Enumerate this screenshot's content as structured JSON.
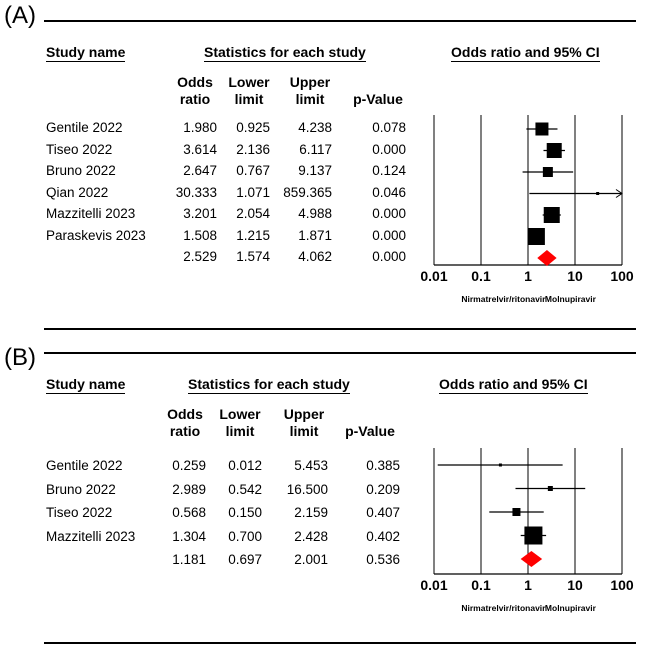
{
  "chart_data": [
    {
      "type": "forest",
      "panel_label": "(A)",
      "headers": {
        "study": "Study name",
        "stats": "Statistics for each study",
        "plot": "Odds ratio and 95% CI",
        "col_or_1": "Odds",
        "col_or_2": "ratio",
        "col_lo_1": "Lower",
        "col_lo_2": "limit",
        "col_hi_1": "Upper",
        "col_hi_2": "limit",
        "col_p": "p-Value"
      },
      "rows": [
        {
          "study": "Gentile 2022",
          "or": "1.980",
          "lower": "0.925",
          "upper": "4.238",
          "p": "0.078",
          "or_v": 1.98,
          "lo_v": 0.925,
          "hi_v": 4.238,
          "size": 13
        },
        {
          "study": "Tiseo 2022",
          "or": "3.614",
          "lower": "2.136",
          "upper": "6.117",
          "p": "0.000",
          "or_v": 3.614,
          "lo_v": 2.136,
          "hi_v": 6.117,
          "size": 15
        },
        {
          "study": "Bruno 2022",
          "or": "2.647",
          "lower": "0.767",
          "upper": "9.137",
          "p": "0.124",
          "or_v": 2.647,
          "lo_v": 0.767,
          "hi_v": 9.137,
          "size": 10
        },
        {
          "study": "Qian 2022",
          "or": "30.333",
          "lower": "1.071",
          "upper": "859.365",
          "p": "0.046",
          "or_v": 30.333,
          "lo_v": 1.071,
          "hi_v": 859.365,
          "size": 3,
          "arrow_right": true
        },
        {
          "study": "Mazzitelli 2023",
          "or": "3.201",
          "lower": "2.054",
          "upper": "4.988",
          "p": "0.000",
          "or_v": 3.201,
          "lo_v": 2.054,
          "hi_v": 4.988,
          "size": 16
        },
        {
          "study": "Paraskevis 2023",
          "or": "1.508",
          "lower": "1.215",
          "upper": "1.871",
          "p": "0.000",
          "or_v": 1.508,
          "lo_v": 1.215,
          "hi_v": 1.871,
          "size": 17
        }
      ],
      "summary": {
        "study": "",
        "or": "2.529",
        "lower": "1.574",
        "upper": "4.062",
        "p": "0.000",
        "or_v": 2.529,
        "lo_v": 1.574,
        "hi_v": 4.062
      },
      "xscale": "log",
      "xticks": [
        0.01,
        0.1,
        1,
        10,
        100
      ],
      "xtick_labels": [
        "0.01",
        "0.1",
        "1",
        "10",
        "100"
      ],
      "left_label": "Nirmatrelvir/ritonavir",
      "right_label": "Molnupiravir",
      "summary_color": "#ff0000"
    },
    {
      "type": "forest",
      "panel_label": "(B)",
      "headers": {
        "study": "Study name",
        "stats": "Statistics for each study",
        "plot": "Odds ratio and 95% CI",
        "col_or_1": "Odds",
        "col_or_2": "ratio",
        "col_lo_1": "Lower",
        "col_lo_2": "limit",
        "col_hi_1": "Upper",
        "col_hi_2": "limit",
        "col_p": "p-Value"
      },
      "rows": [
        {
          "study": "Gentile 2022",
          "or": "0.259",
          "lower": "0.012",
          "upper": "5.453",
          "p": "0.385",
          "or_v": 0.259,
          "lo_v": 0.012,
          "hi_v": 5.453,
          "size": 3
        },
        {
          "study": "Bruno 2022",
          "or": "2.989",
          "lower": "0.542",
          "upper": "16.500",
          "p": "0.209",
          "or_v": 2.989,
          "lo_v": 0.542,
          "hi_v": 16.5,
          "size": 5
        },
        {
          "study": "Tiseo 2022",
          "or": "0.568",
          "lower": "0.150",
          "upper": "2.159",
          "p": "0.407",
          "or_v": 0.568,
          "lo_v": 0.15,
          "hi_v": 2.159,
          "size": 8
        },
        {
          "study": "Mazzitelli 2023",
          "or": "1.304",
          "lower": "0.700",
          "upper": "2.428",
          "p": "0.402",
          "or_v": 1.304,
          "lo_v": 0.7,
          "hi_v": 2.428,
          "size": 18
        }
      ],
      "summary": {
        "study": "",
        "or": "1.181",
        "lower": "0.697",
        "upper": "2.001",
        "p": "0.536",
        "or_v": 1.181,
        "lo_v": 0.697,
        "hi_v": 2.001
      },
      "xscale": "log",
      "xticks": [
        0.01,
        0.1,
        1,
        10,
        100
      ],
      "xtick_labels": [
        "0.01",
        "0.1",
        "1",
        "10",
        "100"
      ],
      "left_label": "Nirmatrelvir/ritonavir",
      "right_label": "Molnupiravir",
      "summary_color": "#ff0000"
    }
  ]
}
